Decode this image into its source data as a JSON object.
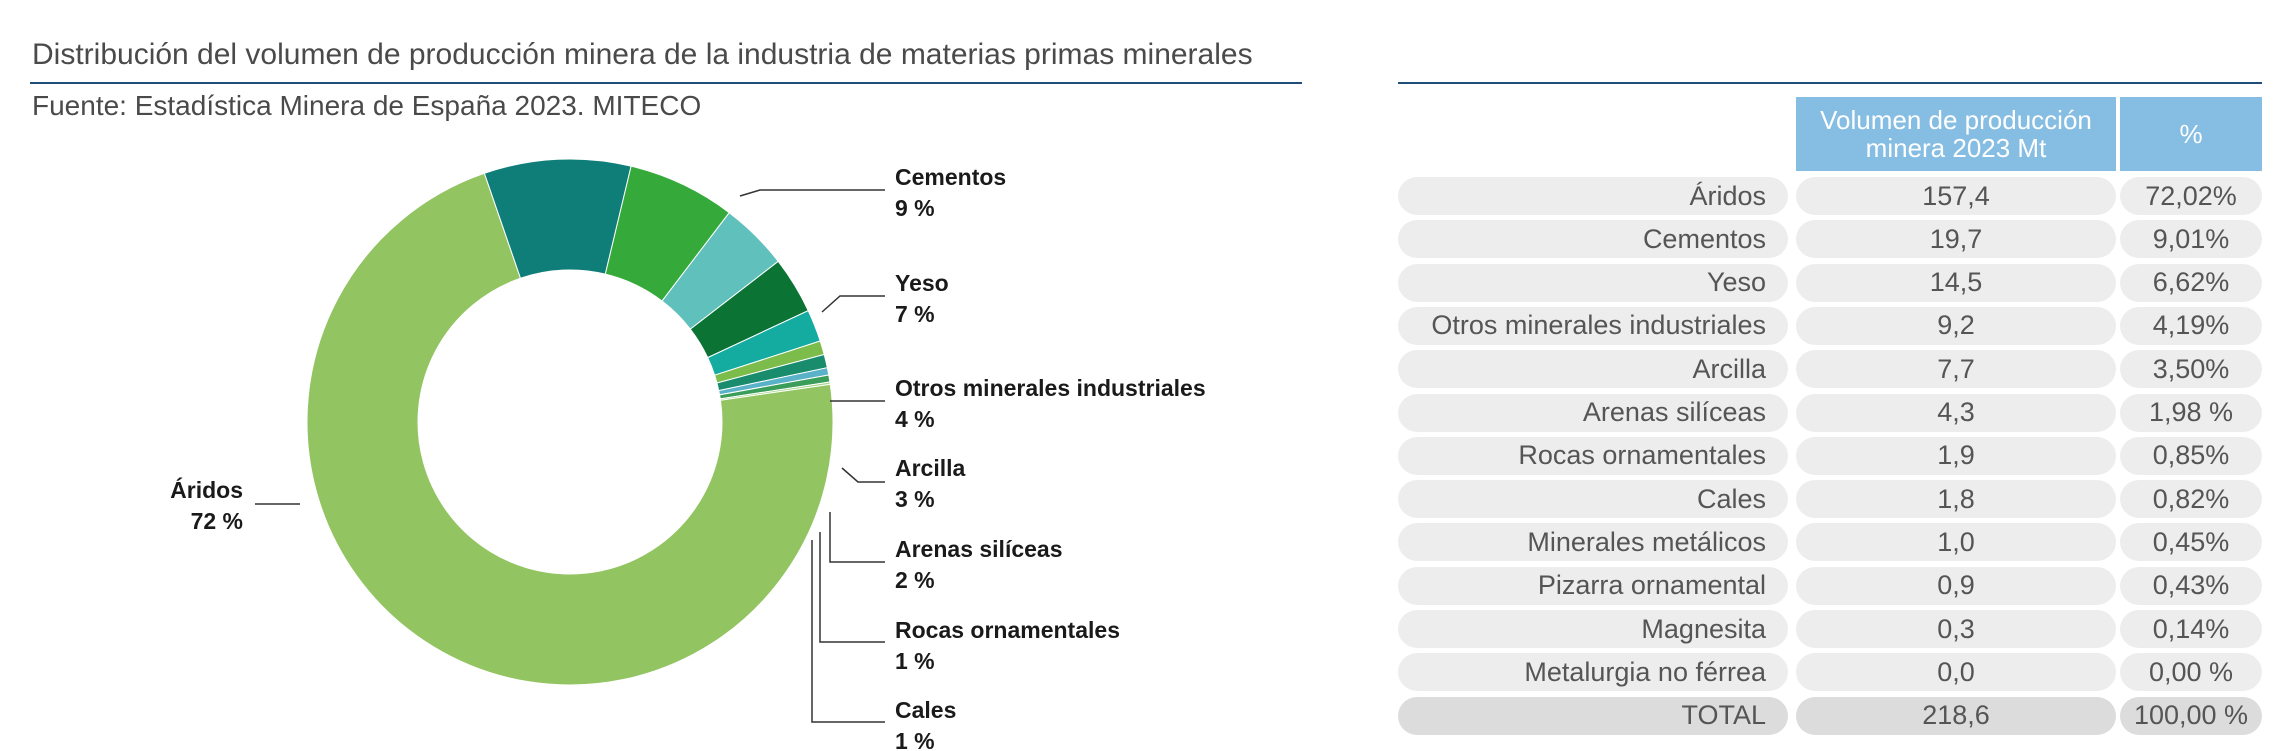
{
  "title": "Distribución del volumen de producción minera de la industria de materias primas minerales",
  "subtitle": "Fuente: Estadística Minera de España 2023. MITECO",
  "colors": {
    "Áridos": "#92c461",
    "Cementos": "#107e78",
    "Yeso": "#35a93a",
    "Otros minerales industriales": "#5fc0bc",
    "Arcilla": "#0b7334",
    "Arenas silíceas": "#14aca0",
    "Rocas ornamentales": "#7cbc4a",
    "Cales": "#1a8c6e",
    "Minerales metálicos": "#5ab2c8",
    "Pizarra ornamental": "#3a9e5a",
    "Magnesita": "#a6d68a",
    "Metalurgia no férrea": "#0f6b55"
  },
  "chart_data": {
    "type": "pie",
    "donut": true,
    "categories": [
      "Áridos",
      "Cementos",
      "Yeso",
      "Otros minerales industriales",
      "Arcilla",
      "Arenas silíceas",
      "Rocas ornamentales",
      "Cales",
      "Minerales metálicos",
      "Pizarra ornamental",
      "Magnesita",
      "Metalurgia no férrea"
    ],
    "values": [
      72.02,
      9.01,
      6.62,
      4.19,
      3.5,
      1.98,
      0.85,
      0.82,
      0.45,
      0.43,
      0.14,
      0.0
    ],
    "labels": [
      {
        "name": "Áridos",
        "pct": "72 %"
      },
      {
        "name": "Cementos",
        "pct": "9 %"
      },
      {
        "name": "Yeso",
        "pct": "7 %"
      },
      {
        "name": "Otros minerales industriales",
        "pct": "4 %"
      },
      {
        "name": "Arcilla",
        "pct": "3 %"
      },
      {
        "name": "Arenas silíceas",
        "pct": "2 %"
      },
      {
        "name": "Rocas ornamentales",
        "pct": "1 %"
      },
      {
        "name": "Cales",
        "pct": "1 %"
      }
    ]
  },
  "table": {
    "headers": [
      "Volumen de producción minera 2023 Mt",
      "%"
    ],
    "rows": [
      {
        "name": "Áridos",
        "vol": "157,4",
        "pct": "72,02%"
      },
      {
        "name": "Cementos",
        "vol": "19,7",
        "pct": "9,01%"
      },
      {
        "name": "Yeso",
        "vol": "14,5",
        "pct": "6,62%"
      },
      {
        "name": "Otros minerales industriales",
        "vol": "9,2",
        "pct": "4,19%"
      },
      {
        "name": "Arcilla",
        "vol": "7,7",
        "pct": "3,50%"
      },
      {
        "name": "Arenas silíceas",
        "vol": "4,3",
        "pct": "1,98 %"
      },
      {
        "name": "Rocas ornamentales",
        "vol": "1,9",
        "pct": "0,85%"
      },
      {
        "name": "Cales",
        "vol": "1,8",
        "pct": "0,82%"
      },
      {
        "name": "Minerales metálicos",
        "vol": "1,0",
        "pct": "0,45%"
      },
      {
        "name": "Pizarra ornamental",
        "vol": "0,9",
        "pct": "0,43%"
      },
      {
        "name": "Magnesita",
        "vol": "0,3",
        "pct": "0,14%"
      },
      {
        "name": "Metalurgia no férrea",
        "vol": "0,0",
        "pct": "0,00 %"
      }
    ],
    "total": {
      "name": "TOTAL",
      "vol": "218,6",
      "pct": "100,00 %"
    }
  }
}
